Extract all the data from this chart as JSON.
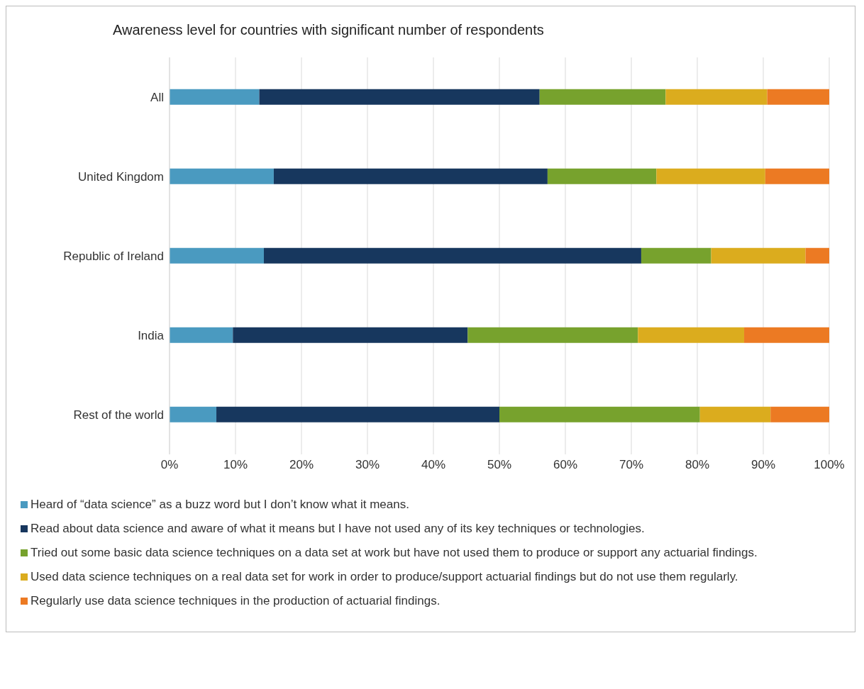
{
  "chart_data": {
    "type": "bar",
    "orientation": "horizontal",
    "stacked": true,
    "title": "Awareness level for countries with significant number of respondents",
    "categories": [
      "All",
      "United Kingdom",
      "Republic of Ireland",
      "India",
      "Rest of the world"
    ],
    "series": [
      {
        "name": "Heard of “data science” as a buzz word but I don’t know what it means.",
        "color": "#4a9ac0",
        "values": [
          13.6,
          15.8,
          14.3,
          9.6,
          7.1
        ]
      },
      {
        "name": "Read about data science and aware of what it means but I have not used any of its key techniques or technologies.",
        "color": "#17375e",
        "values": [
          42.5,
          41.5,
          57.2,
          35.6,
          42.9
        ]
      },
      {
        "name": "Tried out some basic data science techniques on a data set at work but have not used them to produce or support any actuarial findings.",
        "color": "#77a22d",
        "values": [
          19.1,
          16.5,
          10.6,
          25.8,
          30.4
        ]
      },
      {
        "name": "Used data science techniques on a real data set for work in order to produce/support actuarial findings but do not use them regularly.",
        "color": "#dbac1e",
        "values": [
          15.4,
          16.5,
          14.3,
          16.1,
          10.7
        ]
      },
      {
        "name": "Regularly use data science techniques in the production of actuarial findings.",
        "color": "#ec7a23",
        "values": [
          9.4,
          9.7,
          3.6,
          12.9,
          8.9
        ]
      }
    ],
    "xlim": [
      0,
      100
    ],
    "xticks": [
      {
        "value": 0,
        "label": "0%"
      },
      {
        "value": 10,
        "label": "10%"
      },
      {
        "value": 20,
        "label": "20%"
      },
      {
        "value": 30,
        "label": "30%"
      },
      {
        "value": 40,
        "label": "40%"
      },
      {
        "value": 50,
        "label": "50%"
      },
      {
        "value": 60,
        "label": "60%"
      },
      {
        "value": 70,
        "label": "70%"
      },
      {
        "value": 80,
        "label": "80%"
      },
      {
        "value": 90,
        "label": "90%"
      },
      {
        "value": 100,
        "label": "100%"
      }
    ],
    "grid": "x",
    "legend": "bottom"
  }
}
